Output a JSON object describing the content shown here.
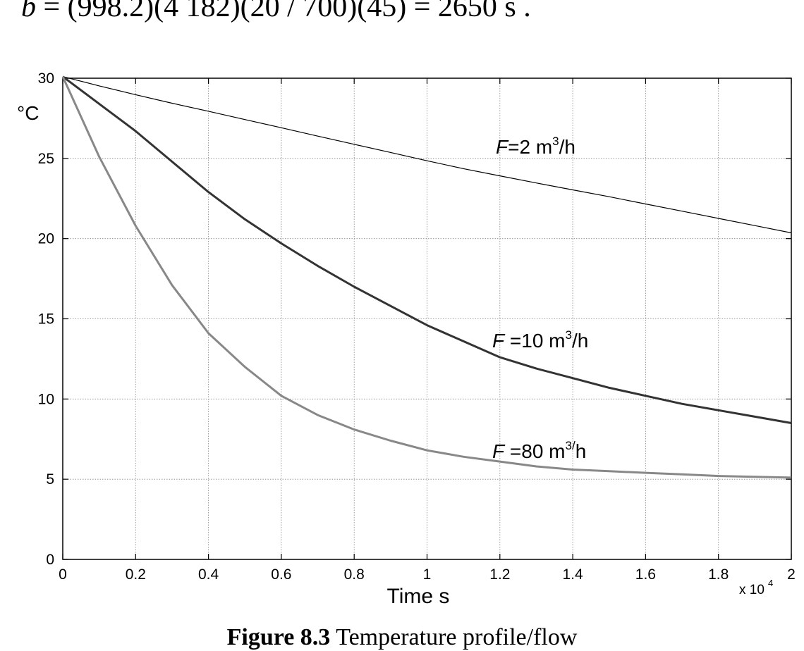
{
  "equation": {
    "symbol": "b",
    "expression": "= (998.2)(4 182)(20 / 700)(45) = 2650 s  ."
  },
  "caption": {
    "figure_label": "Figure 8.3",
    "text": " Temperature profile/flow"
  },
  "chart_data": {
    "type": "line",
    "title": "",
    "xlabel": "Time s",
    "ylabel": "°C",
    "x_multiplier": "x 10",
    "x_multiplier_exponent": "4",
    "xlim": [
      0,
      2
    ],
    "ylim": [
      0,
      30
    ],
    "x_ticks": [
      "0",
      "0.2",
      "0.4",
      "0.6",
      "0.8",
      "1",
      "1.2",
      "1.4",
      "1.6",
      "1.8",
      "2"
    ],
    "y_ticks": [
      "0",
      "5",
      "10",
      "15",
      "20",
      "25",
      "30"
    ],
    "grid": true,
    "series": [
      {
        "label_prefix": "F",
        "label_main": "=2 m",
        "label_sup": "3",
        "label_suffix": "/h",
        "color": "#000000",
        "x": [
          0,
          0.1,
          0.2,
          0.3,
          0.4,
          0.5,
          0.6,
          0.7,
          0.8,
          0.9,
          1.0,
          1.1,
          1.2,
          1.3,
          1.4,
          1.5,
          1.6,
          1.7,
          1.8,
          1.9,
          2.0
        ],
        "y": [
          30.1,
          29.52,
          28.97,
          28.44,
          27.94,
          27.42,
          26.91,
          26.39,
          25.88,
          25.37,
          24.85,
          24.36,
          23.91,
          23.47,
          23.04,
          22.61,
          22.16,
          21.71,
          21.26,
          20.81,
          20.36
        ]
      },
      {
        "label_prefix": "F",
        "label_main": " =10 m",
        "label_sup": "3",
        "label_suffix": "/h",
        "color": "#333333",
        "x": [
          0,
          0.1,
          0.2,
          0.3,
          0.4,
          0.5,
          0.6,
          0.7,
          0.8,
          0.9,
          1.0,
          1.1,
          1.2,
          1.3,
          1.4,
          1.5,
          1.6,
          1.7,
          1.8,
          1.9,
          2.0
        ],
        "y": [
          30.1,
          28.4,
          26.7,
          24.8,
          22.9,
          21.2,
          19.7,
          18.3,
          17.0,
          15.8,
          14.6,
          13.6,
          12.6,
          11.9,
          11.3,
          10.7,
          10.2,
          9.7,
          9.3,
          8.9,
          8.5
        ]
      },
      {
        "label_prefix": "F",
        "label_main": " =80 m",
        "label_sup": "3/",
        "label_suffix": "h",
        "color": "#888888",
        "x": [
          0,
          0.1,
          0.2,
          0.3,
          0.4,
          0.5,
          0.6,
          0.7,
          0.8,
          0.9,
          1.0,
          1.1,
          1.2,
          1.3,
          1.4,
          1.5,
          1.6,
          1.7,
          1.8,
          1.9,
          2.0
        ],
        "y": [
          30.1,
          25.1,
          20.8,
          17.1,
          14.1,
          12.0,
          10.2,
          9.0,
          8.1,
          7.4,
          6.8,
          6.4,
          6.1,
          5.8,
          5.6,
          5.5,
          5.4,
          5.3,
          5.2,
          5.15,
          5.1
        ]
      }
    ]
  }
}
